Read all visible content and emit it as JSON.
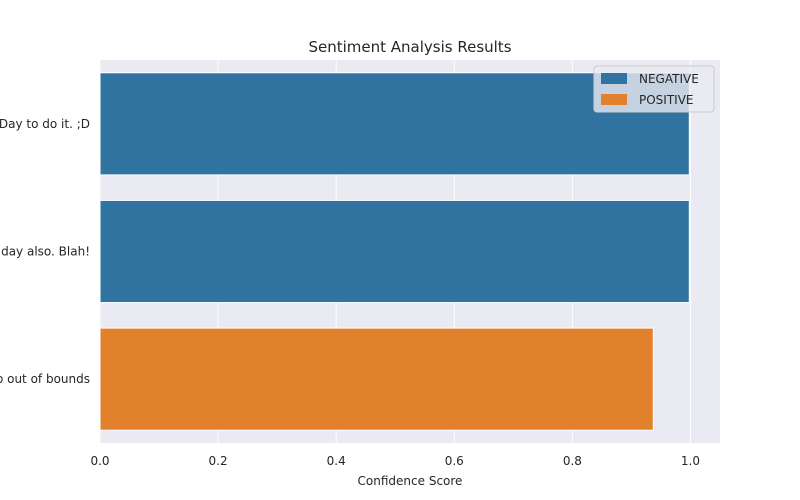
{
  "chart_data": {
    "type": "bar",
    "orientation": "horizontal",
    "title": "Sentiment Analysis Results",
    "xlabel": "Confidence Score",
    "ylabel": "",
    "xlim": [
      0,
      1.05
    ],
    "xticks": [
      "0.0",
      "0.2",
      "0.4",
      "0.6",
      "0.8",
      "1.0"
    ],
    "grid": true,
    "legend_position": "top-right",
    "categories": [
      "Day to do it. ;D",
      "day also. Blah!",
      "o out of bounds"
    ],
    "values": [
      0.998,
      0.998,
      0.937
    ],
    "labels": [
      "NEGATIVE",
      "NEGATIVE",
      "POSITIVE"
    ],
    "legend": [
      {
        "name": "NEGATIVE",
        "color": "#3274a1"
      },
      {
        "name": "POSITIVE",
        "color": "#e1812c"
      }
    ],
    "colors": {
      "background": "#eaeaf2",
      "grid": "#ffffff"
    }
  }
}
